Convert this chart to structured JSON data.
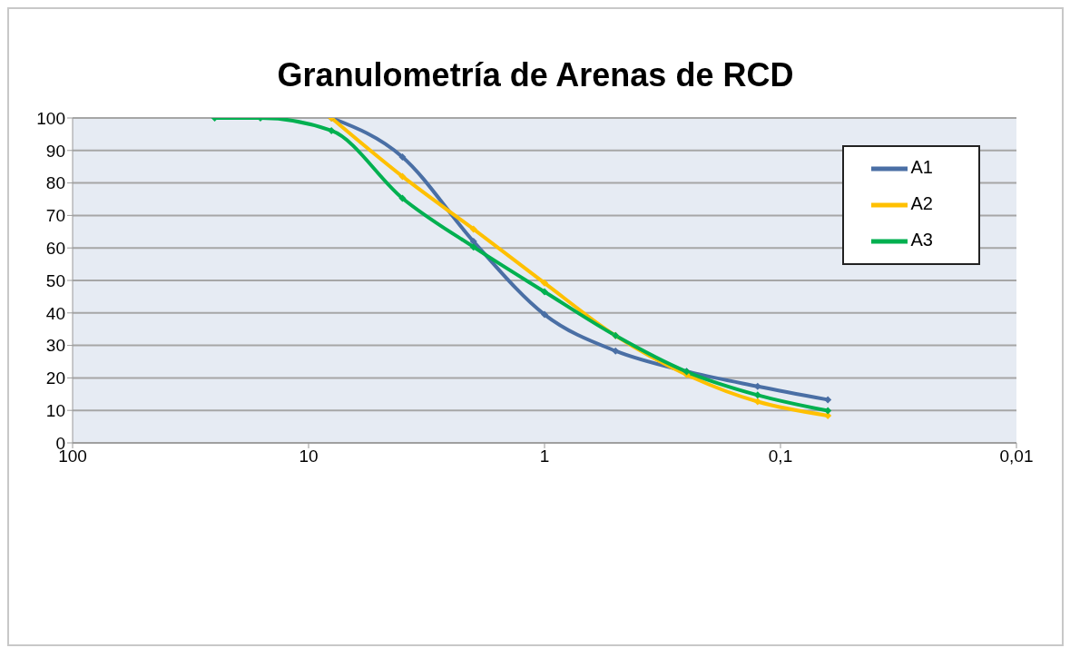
{
  "chart_data": {
    "type": "line",
    "title": "Granulometría de Arenas de RCD",
    "log": "x",
    "xlim": [
      100,
      0.01
    ],
    "xticks": [
      100,
      10,
      1,
      {
        "value": 0.1,
        "label": "0,1"
      },
      {
        "value": 0.01,
        "label": "0,01"
      }
    ],
    "ylim": [
      0,
      100
    ],
    "yticks": [
      0,
      10,
      20,
      30,
      40,
      50,
      60,
      70,
      80,
      90,
      100
    ],
    "grid": "y",
    "legend": "top right",
    "marker": "diamond",
    "line_style": "solid",
    "series": [
      {
        "name": "A1",
        "color": "#4a6fa5",
        "x": [
          8,
          4,
          2,
          1,
          0.5,
          0.25,
          0.125,
          0.063
        ],
        "values": [
          100,
          88,
          62,
          39.5,
          28.3,
          22,
          17.4,
          13.3
        ]
      },
      {
        "name": "A2",
        "color": "#ffc000",
        "x": [
          8,
          4,
          2,
          1,
          0.5,
          0.25,
          0.125,
          0.063
        ],
        "values": [
          100,
          82,
          65.8,
          49.2,
          33,
          21,
          12.7,
          8.4
        ]
      },
      {
        "name": "A3",
        "color": "#00b050",
        "x": [
          25,
          16,
          8,
          4,
          2,
          1,
          0.5,
          0.25,
          0.125,
          0.063
        ],
        "values": [
          100,
          100,
          96.1,
          75.3,
          60.3,
          46.5,
          33,
          21.9,
          14.7,
          9.9
        ]
      }
    ]
  }
}
